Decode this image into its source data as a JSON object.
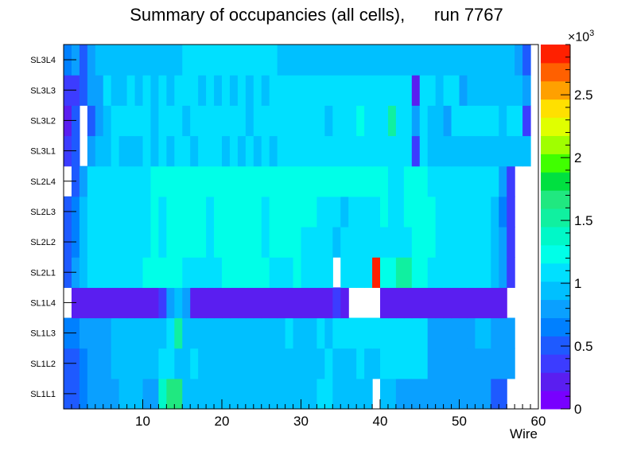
{
  "chart_data": {
    "type": "heatmap",
    "title": "Summary of occupancies (all cells),      run 7767",
    "xlabel": "Wire",
    "ylabel": "",
    "x_ticks": [
      10,
      20,
      30,
      40,
      50,
      60
    ],
    "xlim": [
      0,
      60
    ],
    "y_categories": [
      "SL1L1",
      "SL1L2",
      "SL1L3",
      "SL1L4",
      "SL2L1",
      "SL2L2",
      "SL2L3",
      "SL2L4",
      "SL3L1",
      "SL3L2",
      "SL3L3",
      "SL3L4"
    ],
    "colorbar": {
      "ticks": [
        0,
        0.5,
        1,
        1.5,
        2,
        2.5
      ],
      "tick_labels": [
        "0",
        "0.5",
        "1",
        "1.5",
        "2",
        "2.5"
      ],
      "multiplier_label": "×10",
      "multiplier_exponent": "3",
      "range": [
        0,
        2.9
      ]
    },
    "z_unit_scale": 1000,
    "grid": false,
    "legend": "colorbar-right",
    "z_rows": {
      "SL3L4": [
        0.6,
        0.85,
        0.45,
        0.85,
        1.0,
        1.0,
        1.0,
        1.0,
        1.0,
        1.0,
        1.0,
        1.0,
        1.0,
        1.0,
        1.0,
        1.15,
        1.15,
        1.15,
        1.15,
        1.15,
        1.15,
        1.15,
        1.15,
        1.15,
        1.15,
        1.15,
        1.15,
        1.0,
        1.0,
        1.0,
        1.0,
        1.0,
        1.0,
        1.0,
        1.0,
        1.0,
        1.0,
        1.0,
        1.0,
        1.0,
        1.0,
        1.0,
        1.0,
        1.0,
        1.0,
        1.0,
        1.0,
        1.0,
        1.0,
        1.0,
        1.0,
        1.0,
        1.0,
        1.0,
        1.0,
        1.0,
        1.0,
        0.85,
        0.45,
        null
      ],
      "SL3L3": [
        0.35,
        0.35,
        0.45,
        0.85,
        0.85,
        1.05,
        1.0,
        1.0,
        1.05,
        1.0,
        1.05,
        1.0,
        1.05,
        1.0,
        1.05,
        1.05,
        1.05,
        1.0,
        1.05,
        1.0,
        1.05,
        1.0,
        1.05,
        1.0,
        1.05,
        1.0,
        1.05,
        1.1,
        1.05,
        1.05,
        1.1,
        1.05,
        1.05,
        1.05,
        1.05,
        1.05,
        1.05,
        1.05,
        1.05,
        1.05,
        1.05,
        1.05,
        1.05,
        1.05,
        0.25,
        1.05,
        1.05,
        1.0,
        1.05,
        1.05,
        0.85,
        1.0,
        1.0,
        1.0,
        1.0,
        1.0,
        1.0,
        1.0,
        0.75,
        null
      ],
      "SL3L2": [
        0.25,
        0.5,
        null,
        0.5,
        0.85,
        0.95,
        1.1,
        1.1,
        1.15,
        1.1,
        1.1,
        1.0,
        1.1,
        1.15,
        1.1,
        1.0,
        1.1,
        1.1,
        1.05,
        1.1,
        1.05,
        1.1,
        1.05,
        1.0,
        1.1,
        1.1,
        1.05,
        1.05,
        1.05,
        1.05,
        1.1,
        1.05,
        1.05,
        1.0,
        1.05,
        1.05,
        1.1,
        1.3,
        1.05,
        1.05,
        1.05,
        1.45,
        1.05,
        1.05,
        0.75,
        1.05,
        0.95,
        1.0,
        0.85,
        1.05,
        1.05,
        1.05,
        1.05,
        1.05,
        1.05,
        0.9,
        1.05,
        1.05,
        0.4,
        null
      ],
      "SL3L1": [
        0.35,
        0.55,
        null,
        0.85,
        1.0,
        1.0,
        1.05,
        1.0,
        1.0,
        1.0,
        1.05,
        1.0,
        1.05,
        1.0,
        1.05,
        1.05,
        1.0,
        1.05,
        1.05,
        1.05,
        1.0,
        1.05,
        1.0,
        1.05,
        1.0,
        1.05,
        1.0,
        1.05,
        1.15,
        1.05,
        1.05,
        1.05,
        1.05,
        1.15,
        1.05,
        1.05,
        1.1,
        1.05,
        1.15,
        1.05,
        1.05,
        1.05,
        1.05,
        1.05,
        0.4,
        1.05,
        0.95,
        1.0,
        1.0,
        1.0,
        1.0,
        1.0,
        1.0,
        1.0,
        1.0,
        1.0,
        1.0,
        1.0,
        0.9,
        null
      ],
      "SL2L4": [
        null,
        0.55,
        0.8,
        1.1,
        1.1,
        1.1,
        1.1,
        1.1,
        1.1,
        1.1,
        1.1,
        1.25,
        1.25,
        1.25,
        1.2,
        1.3,
        1.3,
        1.2,
        1.2,
        1.3,
        1.3,
        1.3,
        1.3,
        1.3,
        1.3,
        1.2,
        1.2,
        1.3,
        1.3,
        1.3,
        1.3,
        1.3,
        1.3,
        1.2,
        1.2,
        1.2,
        1.2,
        1.2,
        1.2,
        1.2,
        1.2,
        1.1,
        1.1,
        1.3,
        1.3,
        1.3,
        1.1,
        1.1,
        1.1,
        1.1,
        1.1,
        1.1,
        1.1,
        1.1,
        1.05,
        0.8,
        0.3,
        null,
        null,
        null
      ],
      "SL2L3": [
        0.45,
        0.65,
        0.9,
        1.1,
        1.1,
        1.1,
        1.1,
        1.1,
        1.1,
        1.1,
        1.1,
        1.2,
        1.1,
        1.2,
        1.25,
        1.2,
        1.2,
        1.2,
        1.1,
        1.25,
        1.2,
        1.25,
        1.2,
        1.2,
        1.25,
        1.1,
        1.25,
        1.25,
        1.25,
        1.25,
        1.25,
        1.25,
        1.1,
        1.1,
        1.1,
        0.95,
        1.05,
        1.1,
        1.1,
        1.1,
        1.2,
        1.1,
        1.1,
        1.2,
        1.2,
        1.2,
        1.2,
        1.1,
        1.1,
        1.1,
        1.1,
        1.1,
        1.1,
        1.1,
        1.0,
        0.6,
        0.3,
        null,
        null,
        null
      ],
      "SL2L2": [
        0.45,
        0.65,
        0.9,
        1.1,
        1.1,
        1.1,
        1.1,
        1.1,
        1.1,
        1.1,
        1.1,
        1.25,
        1.15,
        1.2,
        1.25,
        1.2,
        1.2,
        1.2,
        1.1,
        1.25,
        1.2,
        1.25,
        1.2,
        1.2,
        1.25,
        1.1,
        1.25,
        1.25,
        1.25,
        1.25,
        1.1,
        1.1,
        1.1,
        1.1,
        1.0,
        1.1,
        1.05,
        1.1,
        1.1,
        1.1,
        1.1,
        1.1,
        1.1,
        1.1,
        1.2,
        1.2,
        1.25,
        1.1,
        1.1,
        1.1,
        1.1,
        1.1,
        1.1,
        1.1,
        1.0,
        0.8,
        0.3,
        null,
        null,
        null
      ],
      "SL2L1": [
        0.5,
        0.75,
        0.9,
        1.1,
        1.1,
        1.1,
        1.1,
        1.1,
        1.1,
        1.1,
        1.25,
        1.25,
        1.25,
        1.25,
        1.25,
        1.1,
        1.1,
        1.1,
        1.1,
        1.1,
        1.25,
        1.25,
        1.25,
        1.25,
        1.25,
        1.25,
        1.1,
        1.1,
        1.1,
        1.25,
        1.1,
        1.1,
        1.1,
        1.1,
        null,
        1.1,
        1.1,
        1.1,
        1.1,
        2.9,
        1.3,
        1.3,
        1.5,
        1.5,
        1.25,
        1.25,
        1.1,
        1.1,
        1.1,
        1.1,
        1.1,
        1.1,
        1.1,
        1.1,
        1.0,
        0.8,
        0.3,
        null,
        null,
        null
      ],
      "SL1L4": [
        null,
        0.15,
        0.15,
        0.15,
        0.15,
        0.15,
        0.15,
        0.15,
        0.15,
        0.15,
        0.15,
        0.15,
        0.3,
        0.85,
        0.9,
        0.85,
        0.15,
        0.15,
        0.15,
        0.15,
        0.15,
        0.15,
        0.15,
        0.15,
        0.15,
        0.15,
        0.15,
        0.15,
        0.15,
        0.15,
        0.15,
        0.15,
        0.15,
        0.15,
        0.35,
        0.15,
        null,
        null,
        null,
        null,
        0.15,
        0.15,
        0.15,
        0.15,
        0.15,
        0.15,
        0.15,
        0.15,
        0.15,
        0.15,
        0.15,
        0.15,
        0.15,
        0.15,
        0.15,
        0.15,
        null,
        null,
        null,
        null
      ],
      "SL1L3": [
        0.6,
        0.6,
        0.75,
        0.85,
        0.85,
        0.85,
        1.0,
        0.95,
        1.0,
        1.0,
        1.0,
        1.0,
        1.0,
        1.05,
        1.5,
        1.0,
        1.0,
        1.0,
        1.0,
        1.0,
        1.0,
        1.0,
        1.0,
        1.0,
        1.0,
        1.0,
        1.0,
        1.0,
        1.05,
        1.0,
        1.0,
        1.0,
        1.05,
        1.0,
        1.05,
        1.05,
        1.05,
        1.05,
        1.05,
        1.05,
        1.05,
        1.05,
        1.05,
        1.05,
        1.05,
        1.05,
        0.8,
        0.8,
        0.8,
        0.8,
        0.8,
        0.8,
        1.0,
        0.9,
        0.8,
        0.8,
        0.8,
        null,
        null,
        null
      ],
      "SL1L2": [
        0.55,
        0.55,
        0.65,
        0.75,
        0.8,
        0.8,
        1.0,
        1.0,
        1.0,
        1.0,
        0.9,
        1.0,
        1.05,
        1.1,
        1.0,
        1.0,
        1.05,
        1.0,
        1.0,
        1.0,
        1.0,
        1.0,
        1.0,
        1.0,
        1.0,
        1.0,
        1.0,
        1.0,
        1.0,
        1.0,
        1.0,
        1.0,
        1.0,
        1.05,
        1.0,
        1.0,
        1.0,
        1.05,
        1.0,
        1.0,
        1.05,
        1.05,
        1.05,
        1.05,
        1.05,
        1.05,
        0.8,
        0.8,
        0.8,
        0.8,
        0.8,
        0.8,
        0.8,
        0.8,
        0.8,
        0.8,
        0.8,
        null,
        null,
        null
      ],
      "SL1L1": [
        0.55,
        0.55,
        0.65,
        0.8,
        0.8,
        0.8,
        0.8,
        1.0,
        1.0,
        1.0,
        0.85,
        0.85,
        1.35,
        1.6,
        1.6,
        1.0,
        1.0,
        1.0,
        1.0,
        1.0,
        1.0,
        1.0,
        1.0,
        1.0,
        1.0,
        1.0,
        1.0,
        1.0,
        1.0,
        1.0,
        1.0,
        1.0,
        1.05,
        1.05,
        1.0,
        1.0,
        1.0,
        1.0,
        1.0,
        null,
        1.0,
        1.0,
        0.85,
        0.85,
        0.85,
        0.85,
        0.8,
        0.8,
        0.8,
        0.8,
        0.8,
        0.8,
        0.85,
        0.8,
        0.5,
        0.5,
        null,
        null,
        null,
        null
      ]
    }
  }
}
